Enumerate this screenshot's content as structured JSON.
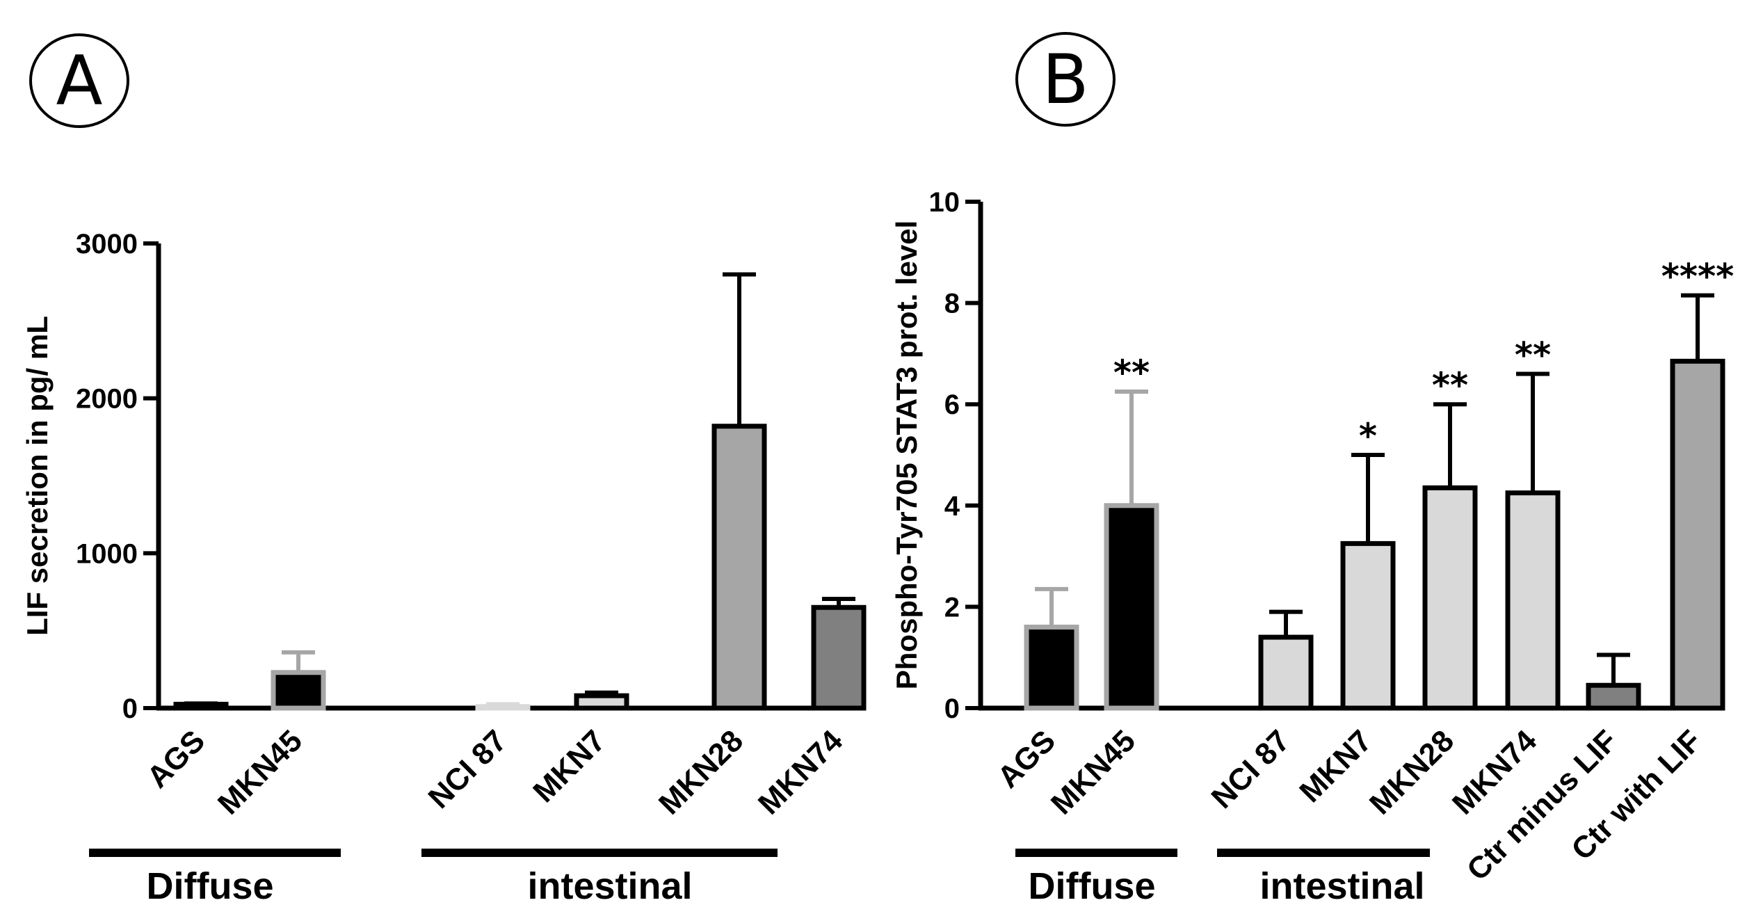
{
  "colors": {
    "black": "#000000",
    "light": "#d9d9d9",
    "mid": "#a6a6a6",
    "dark": "#808080",
    "outline_grey": "#a6a6a6"
  },
  "panels": {
    "a": {
      "letter": "A"
    },
    "b": {
      "letter": "B"
    }
  },
  "chart_data": [
    {
      "panel": "A",
      "type": "bar",
      "ylabel": "LIF secretion in pg/ mL",
      "ylim": [
        0,
        3000
      ],
      "yticks": [
        0,
        1000,
        2000,
        3000
      ],
      "categories": [
        "AGS",
        "MKN45",
        "NCI 87",
        "MKN7",
        "MKN28",
        "MKN74"
      ],
      "values": [
        25,
        230,
        10,
        80,
        1820,
        650
      ],
      "errors": [
        5,
        130,
        15,
        20,
        980,
        55
      ],
      "fills": [
        "black",
        "black",
        "light",
        "light",
        "mid",
        "dark"
      ],
      "outlines": [
        "black",
        "outline_grey",
        "light",
        "black",
        "black",
        "black"
      ],
      "groups": [
        {
          "label": "Diffuse",
          "from": 0,
          "to": 1
        },
        {
          "label": "intestinal",
          "from": 2,
          "to": 5
        }
      ],
      "significance": [
        "",
        "",
        "",
        "",
        "",
        ""
      ]
    },
    {
      "panel": "B",
      "type": "bar",
      "ylabel": "Phospho-Tyr705 STAT3 prot. level",
      "ylim": [
        0,
        10
      ],
      "yticks": [
        0,
        2,
        4,
        6,
        8,
        10
      ],
      "categories": [
        "AGS",
        "MKN45",
        "NCI 87",
        "MKN7",
        "MKN28",
        "MKN74",
        "Ctr minus LIF",
        "Ctr with LIF"
      ],
      "values": [
        1.6,
        4.0,
        1.4,
        3.25,
        4.35,
        4.25,
        0.45,
        6.85
      ],
      "errors": [
        0.75,
        2.25,
        0.5,
        1.75,
        1.65,
        2.35,
        0.6,
        1.3
      ],
      "fills": [
        "black",
        "black",
        "light",
        "light",
        "light",
        "light",
        "dark",
        "mid"
      ],
      "outlines": [
        "outline_grey",
        "outline_grey",
        "black",
        "black",
        "black",
        "black",
        "black",
        "black"
      ],
      "groups": [
        {
          "label": "Diffuse",
          "from": 0,
          "to": 1
        },
        {
          "label": "intestinal",
          "from": 2,
          "to": 4
        }
      ],
      "significance": [
        "",
        "**",
        "",
        "*",
        "**",
        "**",
        "",
        "****"
      ]
    }
  ]
}
